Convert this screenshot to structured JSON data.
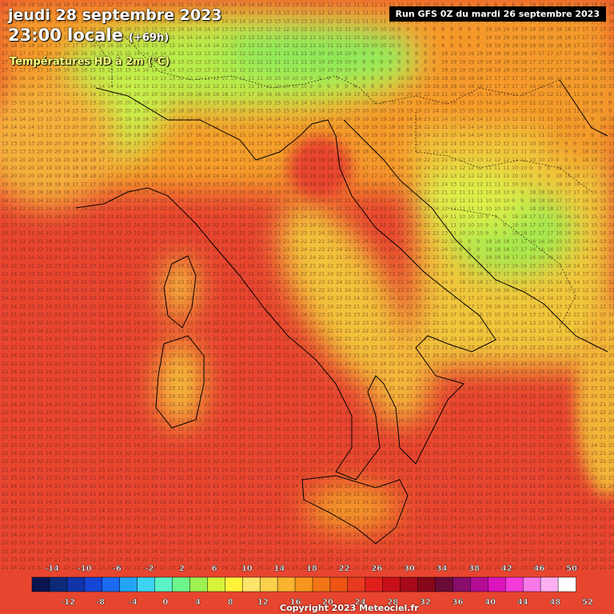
{
  "header": {
    "date": "jeudi 28 septembre 2023",
    "time": "23:00 locale",
    "lead": "(+69h)",
    "variable": "Températures HD à 2m (°C)"
  },
  "run_info": "Run GFS 0Z du mardi 26 septembre 2023",
  "copyright": "Copyright 2023 Meteociel.fr",
  "legend": {
    "top_labels": [
      "-14",
      "-10",
      "-6",
      "-2",
      "2",
      "6",
      "10",
      "14",
      "18",
      "22",
      "26",
      "30",
      "34",
      "38",
      "42",
      "46",
      "50"
    ],
    "bottom_labels": [
      "-12",
      "-8",
      "-4",
      "0",
      "4",
      "8",
      "12",
      "16",
      "20",
      "24",
      "28",
      "32",
      "36",
      "40",
      "44",
      "48",
      "52"
    ],
    "colors": [
      "#0a1450",
      "#0c2a78",
      "#1033a8",
      "#1646d6",
      "#1b6bf0",
      "#23a4f5",
      "#3dd4f2",
      "#5cf2c8",
      "#6ef58a",
      "#9cf050",
      "#d6f23a",
      "#fff23a",
      "#fde46a",
      "#fbd04a",
      "#fab430",
      "#f7951e",
      "#f37518",
      "#ee5514",
      "#e83a1e",
      "#e0201c",
      "#c8101a",
      "#a80a1a",
      "#86081a",
      "#6a0a36",
      "#880c6a",
      "#b40c94",
      "#dc14bc",
      "#f43ad8",
      "#f878e8",
      "#fcb0f2",
      "#ffffff"
    ]
  },
  "map": {
    "grid_values": [
      "22",
      "23",
      "21",
      "24",
      "20",
      "19",
      "18",
      "17",
      "16",
      "15",
      "14",
      "13",
      "12",
      "11",
      "10",
      "9",
      "8",
      "7",
      "25"
    ]
  }
}
